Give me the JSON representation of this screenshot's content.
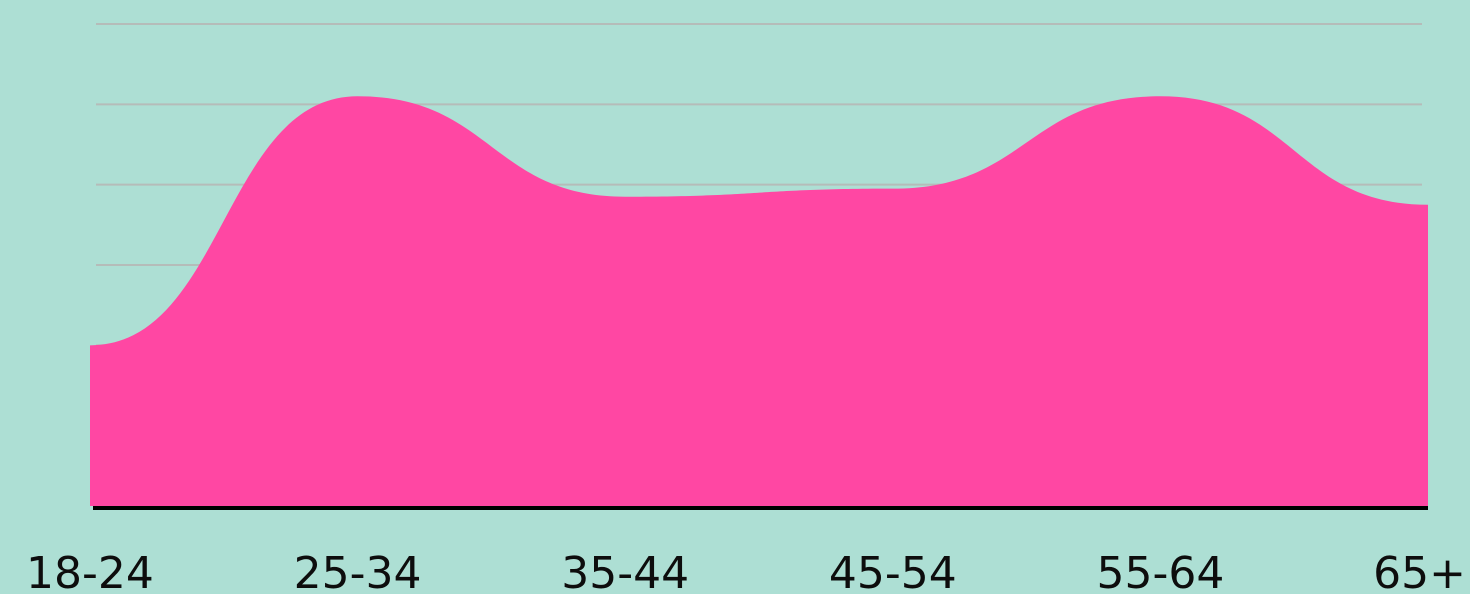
{
  "colors": {
    "background": "#addfd4",
    "area": "#ff47a3",
    "grid": "#b5bcb9",
    "axis": "#000000",
    "text": "#0d0d0d"
  },
  "chart_data": {
    "type": "area",
    "title": "",
    "xlabel": "",
    "ylabel": "",
    "categories": [
      "18-24",
      "25-34",
      "35-44",
      "45-54",
      "55-64",
      "65+"
    ],
    "series": [
      {
        "values": [
          2.0,
          5.1,
          3.85,
          3.95,
          5.1,
          3.75
        ]
      }
    ],
    "ylim": [
      0,
      6
    ],
    "grid": true,
    "legend": "none"
  }
}
